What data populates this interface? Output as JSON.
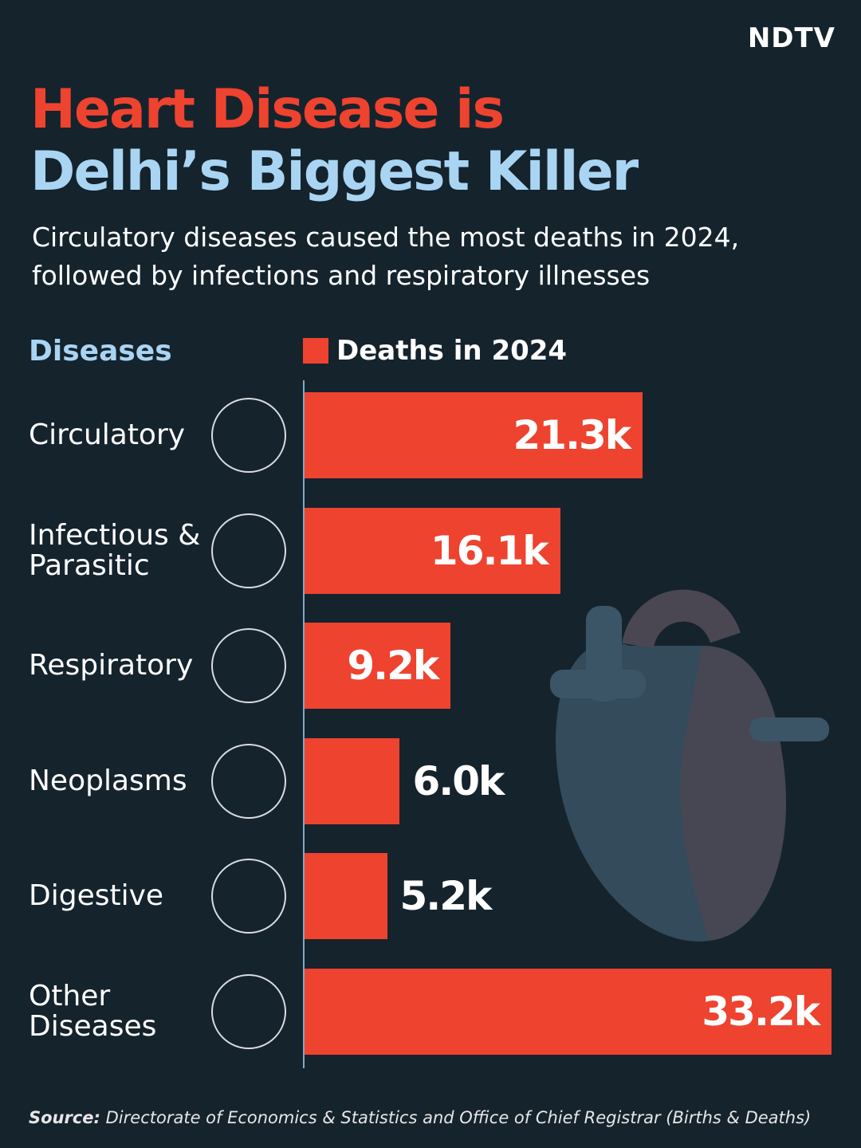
{
  "chart_data": {
    "type": "bar",
    "orientation": "horizontal",
    "logo": "NDTV",
    "title": [
      "Heart Disease is",
      "Delhi’s Biggest Killer"
    ],
    "subtitle": "Circulatory diseases caused the most deaths in 2024, followed by infections and respiratory illnesses",
    "category_header": "Diseases",
    "categories": [
      "Circulatory",
      "Infectious & Parasitic",
      "Respiratory",
      "Neoplasms",
      "Digestive",
      "Other Diseases"
    ],
    "series": [
      {
        "name": "Deaths in 2024",
        "color": "#ee432f",
        "values": [
          21.3,
          16.1,
          9.2,
          6.0,
          5.2,
          33.2
        ],
        "value_labels": [
          "21.3k",
          "16.1k",
          "9.2k",
          "6.0k",
          "5.2k",
          "33.2k"
        ]
      }
    ],
    "source_label": "Source:",
    "source": "Directorate of Economics & Statistics and Office of Chief Registrar (Births & Deaths)"
  }
}
